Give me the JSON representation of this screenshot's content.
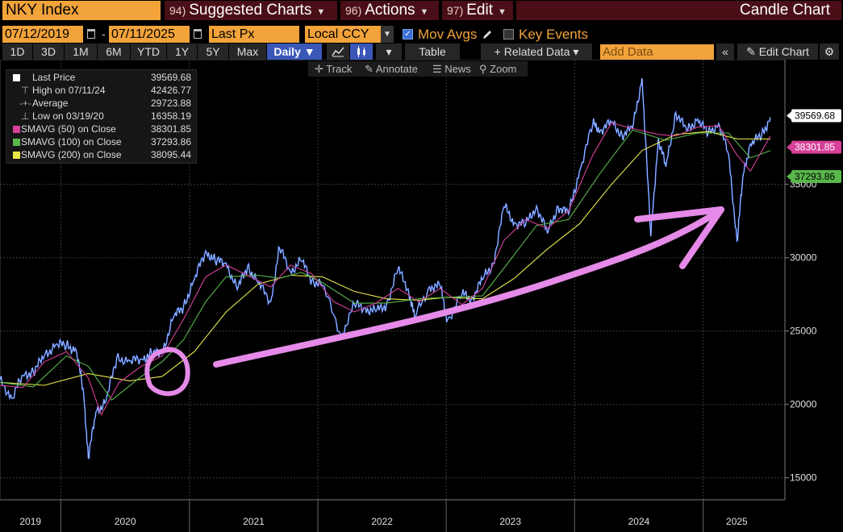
{
  "toolbar": {
    "ticker": "NKY Index",
    "menus": [
      {
        "num": "94)",
        "label": "Suggested Charts"
      },
      {
        "num": "96)",
        "label": "Actions"
      },
      {
        "num": "97)",
        "label": "Edit"
      }
    ],
    "chart_title": "Candle Chart"
  },
  "controls": {
    "start_date": "07/12/2019",
    "end_date": "07/11/2025",
    "field": "Last Px",
    "currency": "Local CCY",
    "mov_avgs_label": "Mov Avgs",
    "key_events_label": "Key Events",
    "periods": [
      "1D",
      "3D",
      "1M",
      "6M",
      "YTD",
      "1Y",
      "5Y",
      "Max"
    ],
    "frequency": "Daily",
    "table_label": "Table",
    "related_data_label": "Related Data",
    "add_data_placeholder": "Add Data",
    "edit_chart_label": "Edit Chart"
  },
  "annotation_tools": [
    "Track",
    "Annotate",
    "News",
    "Zoom"
  ],
  "legend": [
    {
      "name": "Last Price",
      "value": "39569.68",
      "color": "#ffffff"
    },
    {
      "name": "High on 07/11/24",
      "value": "42426.77",
      "color": ""
    },
    {
      "name": "Average",
      "value": "29723.88",
      "color": ""
    },
    {
      "name": "Low on 03/19/20",
      "value": "16358.19",
      "color": ""
    },
    {
      "name": "SMAVG (50)  on Close",
      "value": "38301.85",
      "color": "#d6409a"
    },
    {
      "name": "SMAVG (100)  on Close",
      "value": "37293.86",
      "color": "#58b84a"
    },
    {
      "name": "SMAVG (200)  on Close",
      "value": "38095.44",
      "color": "#e8e84a"
    }
  ],
  "chart_data": {
    "type": "line",
    "title": "",
    "xlabel": "",
    "ylabel": "",
    "ylim": [
      13500,
      43500
    ],
    "y_ticks": [
      15000,
      20000,
      25000,
      30000,
      35000
    ],
    "year_labels": [
      "2019",
      "2020",
      "2021",
      "2022",
      "2023",
      "2024",
      "2025"
    ],
    "x_range": [
      "2019-07-12",
      "2025-07-11"
    ],
    "grid": true,
    "colors": {
      "price": "#4a7dff",
      "sma50": "#d6409a",
      "sma100": "#58b84a",
      "sma200": "#e8e84a",
      "annotation": "#e58ae8"
    },
    "price": [
      [
        "2019-07-12",
        21686
      ],
      [
        "2019-08-15",
        20405
      ],
      [
        "2019-09-15",
        21988
      ],
      [
        "2019-10-15",
        22207
      ],
      [
        "2019-11-15",
        23303
      ],
      [
        "2019-12-17",
        24066
      ],
      [
        "2020-01-17",
        24041
      ],
      [
        "2020-02-14",
        23687
      ],
      [
        "2020-03-06",
        20749
      ],
      [
        "2020-03-19",
        16358
      ],
      [
        "2020-04-10",
        19498
      ],
      [
        "2020-05-08",
        20179
      ],
      [
        "2020-06-08",
        23178
      ],
      [
        "2020-07-15",
        22945
      ],
      [
        "2020-08-17",
        23096
      ],
      [
        "2020-09-15",
        23454
      ],
      [
        "2020-10-15",
        23507
      ],
      [
        "2020-11-16",
        25906
      ],
      [
        "2020-12-15",
        26687
      ],
      [
        "2021-01-15",
        28519
      ],
      [
        "2021-02-16",
        30467
      ],
      [
        "2021-03-15",
        29766
      ],
      [
        "2021-04-15",
        29642
      ],
      [
        "2021-05-17",
        27824
      ],
      [
        "2021-06-15",
        29441
      ],
      [
        "2021-07-15",
        28279
      ],
      [
        "2021-08-20",
        27013
      ],
      [
        "2021-09-14",
        30670
      ],
      [
        "2021-10-15",
        29068
      ],
      [
        "2021-11-15",
        29776
      ],
      [
        "2021-12-15",
        28459
      ],
      [
        "2022-01-14",
        28124
      ],
      [
        "2022-03-09",
        24717
      ],
      [
        "2022-04-15",
        26800
      ],
      [
        "2022-05-16",
        26547
      ],
      [
        "2022-06-15",
        26326
      ],
      [
        "2022-07-15",
        26788
      ],
      [
        "2022-08-17",
        29222
      ],
      [
        "2022-09-15",
        27875
      ],
      [
        "2022-10-03",
        25937
      ],
      [
        "2022-11-15",
        28028
      ],
      [
        "2022-12-15",
        28051
      ],
      [
        "2023-01-04",
        25717
      ],
      [
        "2023-02-15",
        27501
      ],
      [
        "2023-03-15",
        27229
      ],
      [
        "2023-04-14",
        28493
      ],
      [
        "2023-05-15",
        29626
      ],
      [
        "2023-06-15",
        33485
      ],
      [
        "2023-07-14",
        32391
      ],
      [
        "2023-08-15",
        32238
      ],
      [
        "2023-09-15",
        33533
      ],
      [
        "2023-10-16",
        31659
      ],
      [
        "2023-11-15",
        33519
      ],
      [
        "2023-12-15",
        32970
      ],
      [
        "2024-01-15",
        35901
      ],
      [
        "2024-02-22",
        39098
      ],
      [
        "2024-03-15",
        38707
      ],
      [
        "2024-04-15",
        39232
      ],
      [
        "2024-05-15",
        38385
      ],
      [
        "2024-06-14",
        38814
      ],
      [
        "2024-07-11",
        42224
      ],
      [
        "2024-08-05",
        31458
      ],
      [
        "2024-08-26",
        38110
      ],
      [
        "2024-09-17",
        36203
      ],
      [
        "2024-10-15",
        39910
      ],
      [
        "2024-11-15",
        38642
      ],
      [
        "2024-12-16",
        39457
      ],
      [
        "2025-01-15",
        38444
      ],
      [
        "2025-02-14",
        39149
      ],
      [
        "2025-03-14",
        37053
      ],
      [
        "2025-04-07",
        31136
      ],
      [
        "2025-04-25",
        35705
      ],
      [
        "2025-05-15",
        37755
      ],
      [
        "2025-06-16",
        38311
      ],
      [
        "2025-07-11",
        39569
      ]
    ],
    "sma50": [
      [
        "2019-07-12",
        21300
      ],
      [
        "2019-09-15",
        21150
      ],
      [
        "2019-11-15",
        22900
      ],
      [
        "2020-01-17",
        23600
      ],
      [
        "2020-03-19",
        21800
      ],
      [
        "2020-04-25",
        19300
      ],
      [
        "2020-06-15",
        21500
      ],
      [
        "2020-08-17",
        22600
      ],
      [
        "2020-10-15",
        23300
      ],
      [
        "2020-12-15",
        25800
      ],
      [
        "2021-02-16",
        28700
      ],
      [
        "2021-04-15",
        29500
      ],
      [
        "2021-06-15",
        28800
      ],
      [
        "2021-08-20",
        28000
      ],
      [
        "2021-10-15",
        29500
      ],
      [
        "2021-12-15",
        28900
      ],
      [
        "2022-02-15",
        27000
      ],
      [
        "2022-04-15",
        26300
      ],
      [
        "2022-06-15",
        26900
      ],
      [
        "2022-08-17",
        27900
      ],
      [
        "2022-10-15",
        27000
      ],
      [
        "2022-12-15",
        27900
      ],
      [
        "2023-02-15",
        26800
      ],
      [
        "2023-04-14",
        27900
      ],
      [
        "2023-06-15",
        31200
      ],
      [
        "2023-08-15",
        32600
      ],
      [
        "2023-10-16",
        32000
      ],
      [
        "2023-12-15",
        33200
      ],
      [
        "2024-02-22",
        37000
      ],
      [
        "2024-04-15",
        39200
      ],
      [
        "2024-06-14",
        38800
      ],
      [
        "2024-08-26",
        38400
      ],
      [
        "2024-10-15",
        38300
      ],
      [
        "2024-12-16",
        38900
      ],
      [
        "2025-02-14",
        39000
      ],
      [
        "2025-04-07",
        37000
      ],
      [
        "2025-05-15",
        35900
      ],
      [
        "2025-07-11",
        38302
      ]
    ],
    "sma100": [
      [
        "2019-07-12",
        21500
      ],
      [
        "2019-10-15",
        21200
      ],
      [
        "2020-01-17",
        23300
      ],
      [
        "2020-03-19",
        22600
      ],
      [
        "2020-05-25",
        20300
      ],
      [
        "2020-08-17",
        21900
      ],
      [
        "2020-10-15",
        22900
      ],
      [
        "2020-12-15",
        24400
      ],
      [
        "2021-02-16",
        27000
      ],
      [
        "2021-04-15",
        28700
      ],
      [
        "2021-07-15",
        28800
      ],
      [
        "2021-09-14",
        28600
      ],
      [
        "2021-11-15",
        29000
      ],
      [
        "2022-01-14",
        28300
      ],
      [
        "2022-04-15",
        26900
      ],
      [
        "2022-07-15",
        26900
      ],
      [
        "2022-10-15",
        27200
      ],
      [
        "2023-01-04",
        27300
      ],
      [
        "2023-04-14",
        27400
      ],
      [
        "2023-06-15",
        29300
      ],
      [
        "2023-09-15",
        32200
      ],
      [
        "2023-12-15",
        32600
      ],
      [
        "2024-03-15",
        35800
      ],
      [
        "2024-06-14",
        38700
      ],
      [
        "2024-09-17",
        38000
      ],
      [
        "2024-12-16",
        38500
      ],
      [
        "2025-03-14",
        38500
      ],
      [
        "2025-05-15",
        36800
      ],
      [
        "2025-07-11",
        37294
      ]
    ],
    "sma200": [
      [
        "2019-07-12",
        21500
      ],
      [
        "2019-11-15",
        21300
      ],
      [
        "2020-03-19",
        22100
      ],
      [
        "2020-07-15",
        21600
      ],
      [
        "2020-10-15",
        21900
      ],
      [
        "2021-01-15",
        23600
      ],
      [
        "2021-04-15",
        26300
      ],
      [
        "2021-07-15",
        28200
      ],
      [
        "2021-10-15",
        28800
      ],
      [
        "2022-01-14",
        28700
      ],
      [
        "2022-04-15",
        27700
      ],
      [
        "2022-07-15",
        27200
      ],
      [
        "2022-10-15",
        27100
      ],
      [
        "2023-01-04",
        27300
      ],
      [
        "2023-04-14",
        27200
      ],
      [
        "2023-07-14",
        28600
      ],
      [
        "2023-10-16",
        30600
      ],
      [
        "2024-01-15",
        32300
      ],
      [
        "2024-04-15",
        35000
      ],
      [
        "2024-07-11",
        37300
      ],
      [
        "2024-10-15",
        38400
      ],
      [
        "2025-01-15",
        38600
      ],
      [
        "2025-04-07",
        38100
      ],
      [
        "2025-07-11",
        38095
      ]
    ],
    "right_tags": [
      {
        "value": 39569.68,
        "label": "39569.68",
        "bg": "#ffffff",
        "fg": "#000000"
      },
      {
        "value": 38301.85,
        "label": "38301.85",
        "bg": "#d6409a",
        "fg": "#ffffff"
      },
      {
        "value": 37293.86,
        "label": "37293.86",
        "bg": "#58b84a",
        "fg": "#000000"
      }
    ]
  }
}
